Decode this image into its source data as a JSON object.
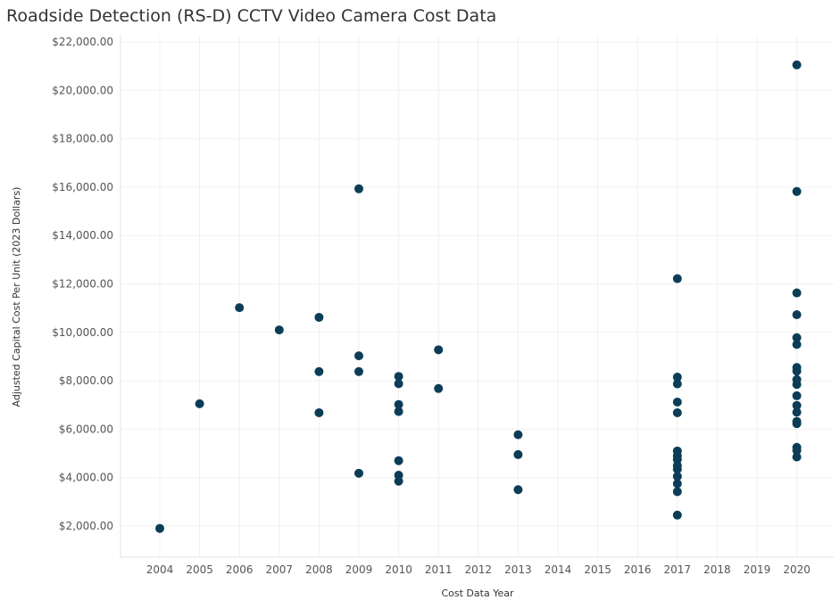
{
  "chart_data": {
    "type": "scatter",
    "title": "Roadside Detection (RS-D) CCTV Video Camera Cost Data",
    "xlabel": "Cost Data Year",
    "ylabel": "Adjusted Capital Cost Per Unit (2023 Dollars)",
    "x_categories": [
      "2004",
      "2005",
      "2006",
      "2007",
      "2008",
      "2009",
      "2010",
      "2011",
      "2012",
      "2013",
      "2014",
      "2015",
      "2016",
      "2017",
      "2018",
      "2019",
      "2020"
    ],
    "y_ticks": [
      2000,
      4000,
      6000,
      8000,
      10000,
      12000,
      14000,
      16000,
      18000,
      20000,
      22000
    ],
    "y_tick_labels": [
      "$2,000.00",
      "$4,000.00",
      "$6,000.00",
      "$8,000.00",
      "$10,000.00",
      "$12,000.00",
      "$14,000.00",
      "$16,000.00",
      "$18,000.00",
      "$20,000.00",
      "$22,000.00"
    ],
    "ylim": [
      700,
      22300
    ],
    "grid": true,
    "marker_color": "#0b3d57",
    "points": [
      {
        "x": "2004",
        "y": 1900
      },
      {
        "x": "2005",
        "y": 7050
      },
      {
        "x": "2006",
        "y": 11020
      },
      {
        "x": "2007",
        "y": 10100
      },
      {
        "x": "2008",
        "y": 10620
      },
      {
        "x": "2008",
        "y": 8380
      },
      {
        "x": "2008",
        "y": 6680
      },
      {
        "x": "2009",
        "y": 15930
      },
      {
        "x": "2009",
        "y": 9030
      },
      {
        "x": "2009",
        "y": 8380
      },
      {
        "x": "2009",
        "y": 4180
      },
      {
        "x": "2010",
        "y": 8180
      },
      {
        "x": "2010",
        "y": 7880
      },
      {
        "x": "2010",
        "y": 7020
      },
      {
        "x": "2010",
        "y": 6730
      },
      {
        "x": "2010",
        "y": 4700
      },
      {
        "x": "2010",
        "y": 4100
      },
      {
        "x": "2010",
        "y": 3850
      },
      {
        "x": "2011",
        "y": 9280
      },
      {
        "x": "2011",
        "y": 7680
      },
      {
        "x": "2013",
        "y": 5770
      },
      {
        "x": "2013",
        "y": 4950
      },
      {
        "x": "2013",
        "y": 3500
      },
      {
        "x": "2017",
        "y": 12220
      },
      {
        "x": "2017",
        "y": 8150
      },
      {
        "x": "2017",
        "y": 7870
      },
      {
        "x": "2017",
        "y": 7120
      },
      {
        "x": "2017",
        "y": 6680
      },
      {
        "x": "2017",
        "y": 5100
      },
      {
        "x": "2017",
        "y": 4900
      },
      {
        "x": "2017",
        "y": 4750
      },
      {
        "x": "2017",
        "y": 4500
      },
      {
        "x": "2017",
        "y": 4350
      },
      {
        "x": "2017",
        "y": 4050
      },
      {
        "x": "2017",
        "y": 3750
      },
      {
        "x": "2017",
        "y": 3420
      },
      {
        "x": "2017",
        "y": 2450
      },
      {
        "x": "2020",
        "y": 21050
      },
      {
        "x": "2020",
        "y": 15820
      },
      {
        "x": "2020",
        "y": 11630
      },
      {
        "x": "2020",
        "y": 10730
      },
      {
        "x": "2020",
        "y": 9780
      },
      {
        "x": "2020",
        "y": 9500
      },
      {
        "x": "2020",
        "y": 8550
      },
      {
        "x": "2020",
        "y": 8400
      },
      {
        "x": "2020",
        "y": 8050
      },
      {
        "x": "2020",
        "y": 7850
      },
      {
        "x": "2020",
        "y": 7380
      },
      {
        "x": "2020",
        "y": 6980
      },
      {
        "x": "2020",
        "y": 6700
      },
      {
        "x": "2020",
        "y": 6320
      },
      {
        "x": "2020",
        "y": 6230
      },
      {
        "x": "2020",
        "y": 5250
      },
      {
        "x": "2020",
        "y": 5120
      },
      {
        "x": "2020",
        "y": 4850
      }
    ]
  }
}
